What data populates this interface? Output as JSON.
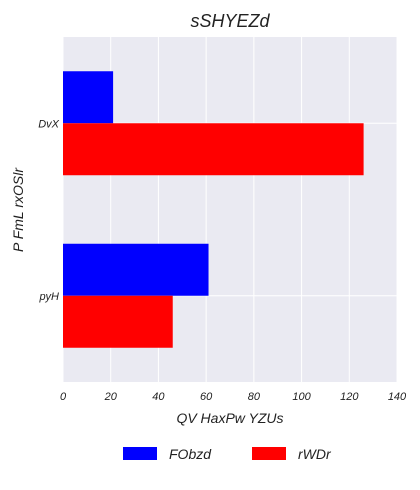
{
  "chart_data": {
    "type": "bar",
    "orientation": "horizontal",
    "title": "sSHYEZd",
    "xlabel": "QV HaxPw YZUs",
    "ylabel": "P FmL rxOSlr",
    "categories": [
      "DvX",
      "pyH"
    ],
    "series": [
      {
        "name": "FObzd",
        "color": "#0000ff",
        "values": [
          21,
          61
        ]
      },
      {
        "name": "rWDr",
        "color": "#ff0000",
        "values": [
          126,
          46
        ]
      }
    ],
    "xlim": [
      0,
      140
    ],
    "xticks": [
      "0",
      "20",
      "40",
      "60",
      "80",
      "100",
      "120",
      "140"
    ],
    "grid": true,
    "legend_position": "bottom"
  }
}
